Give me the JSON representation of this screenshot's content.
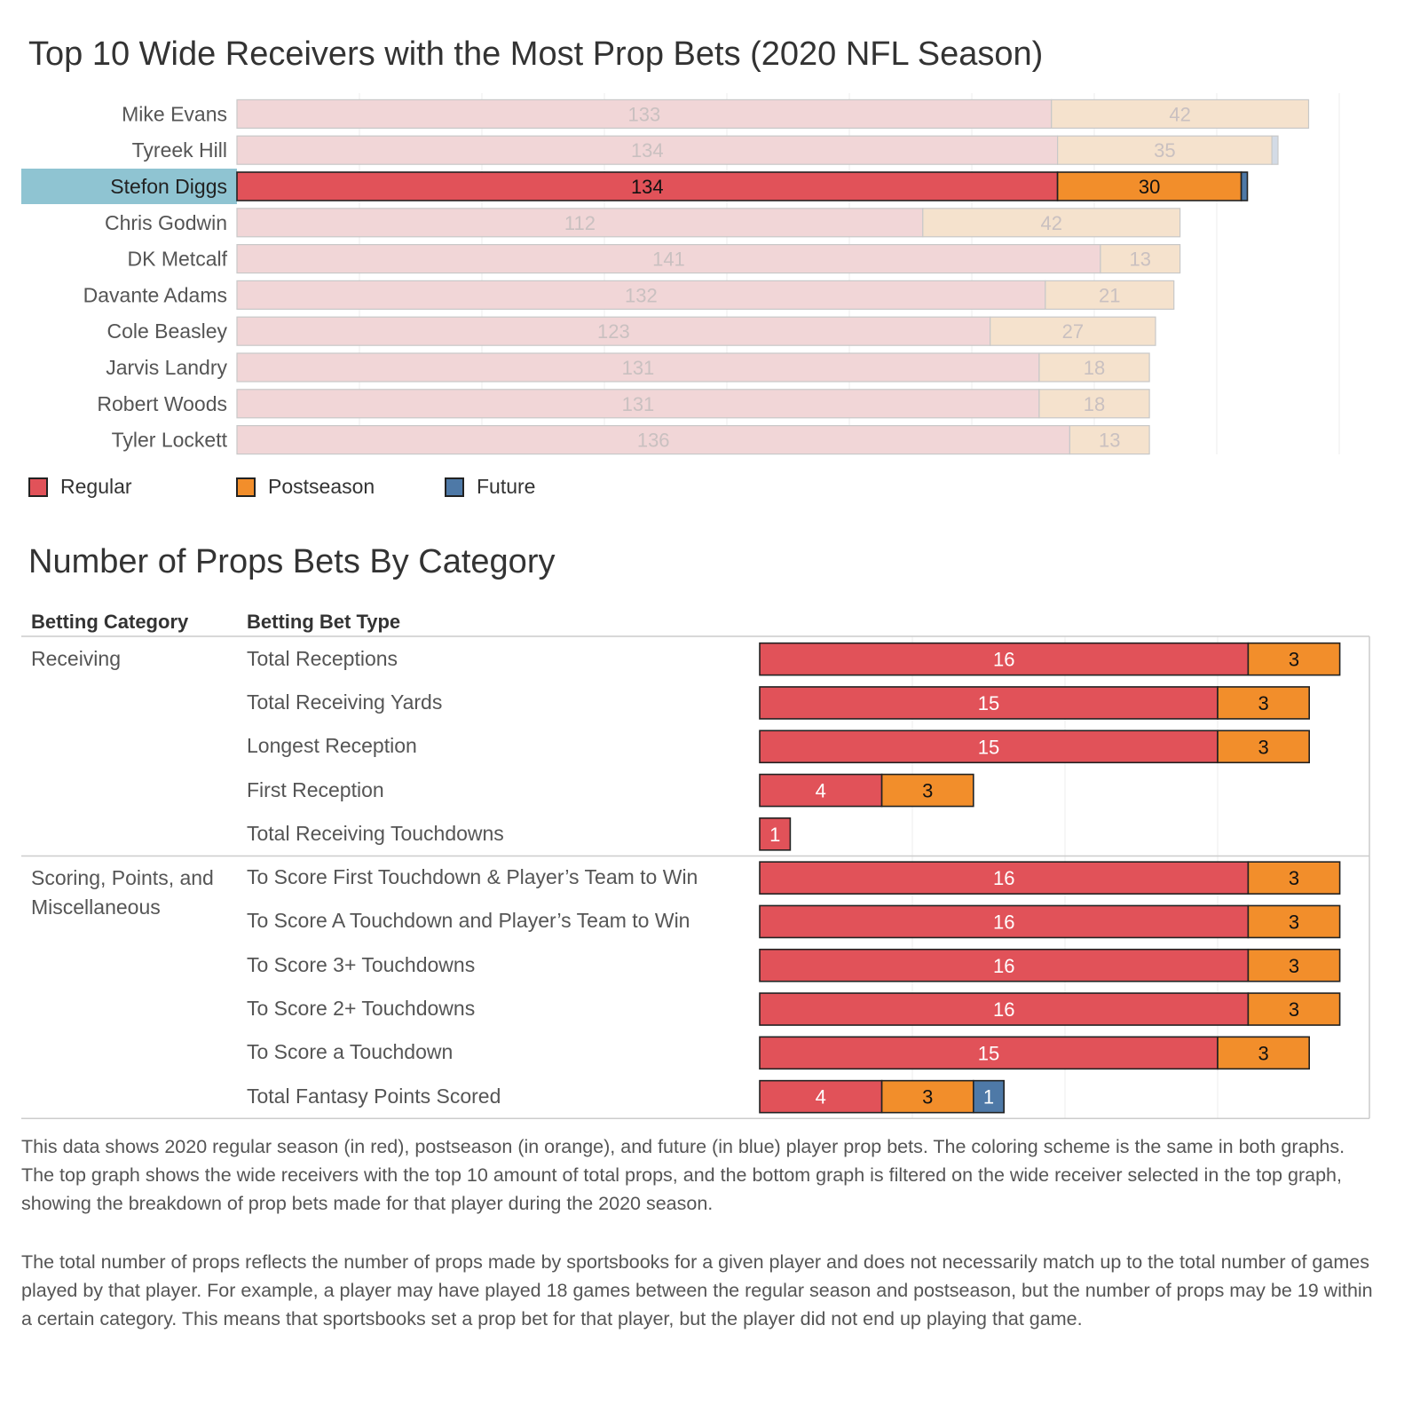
{
  "colors": {
    "regular": "#e15259",
    "postseason": "#f28e2b",
    "future": "#4e79a7",
    "regular_faded": "#f1d6d7",
    "postseason_faded": "#f5e2cd",
    "future_faded": "#d3dbe6",
    "selected_highlight": "#8fc4d2"
  },
  "legend": [
    {
      "key": "regular",
      "label": "Regular"
    },
    {
      "key": "postseason",
      "label": "Postseason"
    },
    {
      "key": "future",
      "label": "Future"
    }
  ],
  "chart_data": [
    {
      "type": "bar",
      "orientation": "horizontal",
      "stacked": true,
      "title": "Top 10 Wide Receivers with the Most Prop Bets (2020 NFL Season)",
      "categories": [
        "Mike Evans",
        "Tyreek Hill",
        "Stefon Diggs",
        "Chris Godwin",
        "DK Metcalf",
        "Davante Adams",
        "Cole Beasley",
        "Jarvis Landry",
        "Robert Woods",
        "Tyler Lockett"
      ],
      "series": [
        {
          "name": "Regular",
          "values": [
            133,
            134,
            134,
            112,
            141,
            132,
            123,
            131,
            131,
            136
          ]
        },
        {
          "name": "Postseason",
          "values": [
            42,
            35,
            30,
            42,
            13,
            21,
            27,
            18,
            18,
            13
          ]
        },
        {
          "name": "Future",
          "values": [
            0,
            1,
            1,
            0,
            0,
            0,
            0,
            0,
            0,
            0
          ]
        }
      ],
      "selected": "Stefon Diggs",
      "xlim": [
        0,
        185
      ],
      "grid": true,
      "legend_position": "bottom-left"
    },
    {
      "type": "bar",
      "orientation": "horizontal",
      "stacked": true,
      "title": "Number of Props Bets By Category",
      "column_headers": [
        "Betting Category",
        "Betting Bet Type"
      ],
      "groups": [
        {
          "category": "Receiving",
          "rows": [
            {
              "type": "Total Receptions",
              "regular": 16,
              "postseason": 3,
              "future": 0
            },
            {
              "type": "Total Receiving Yards",
              "regular": 15,
              "postseason": 3,
              "future": 0
            },
            {
              "type": "Longest Reception",
              "regular": 15,
              "postseason": 3,
              "future": 0
            },
            {
              "type": "First Reception",
              "regular": 4,
              "postseason": 3,
              "future": 0
            },
            {
              "type": "Total Receiving Touchdowns",
              "regular": 1,
              "postseason": 0,
              "future": 0
            }
          ]
        },
        {
          "category": "Scoring, Points, and Miscellaneous",
          "rows": [
            {
              "type": "To Score First Touchdown & Player’s Team to Win",
              "regular": 16,
              "postseason": 3,
              "future": 0
            },
            {
              "type": "To Score A Touchdown and Player’s Team to Win",
              "regular": 16,
              "postseason": 3,
              "future": 0
            },
            {
              "type": "To Score 3+ Touchdowns",
              "regular": 16,
              "postseason": 3,
              "future": 0
            },
            {
              "type": "To Score 2+ Touchdowns",
              "regular": 16,
              "postseason": 3,
              "future": 0
            },
            {
              "type": "To Score a Touchdown",
              "regular": 15,
              "postseason": 3,
              "future": 0
            },
            {
              "type": "Total Fantasy Points Scored",
              "regular": 4,
              "postseason": 3,
              "future": 1
            }
          ]
        }
      ],
      "xlim": [
        0,
        20
      ],
      "grid": true
    }
  ],
  "description": [
    "This data shows 2020 regular season (in red), postseason (in orange), and future (in blue) player prop bets. The coloring scheme is the same in both graphs. The top graph shows the wide receivers with the top 10 amount of total props, and the bottom graph is filtered on the wide receiver selected in the top graph, showing the breakdown of prop bets made for that player during the 2020 season.",
    "The total number of props reflects the number of props made by sportsbooks for a given player and does not necessarily match up to the total number of games played by that player. For example, a player may have played 18 games between the regular season and postseason, but the number of props may be 19 within a certain category. This means that sportsbooks set a prop bet for that player, but the player did not end up playing that game."
  ]
}
